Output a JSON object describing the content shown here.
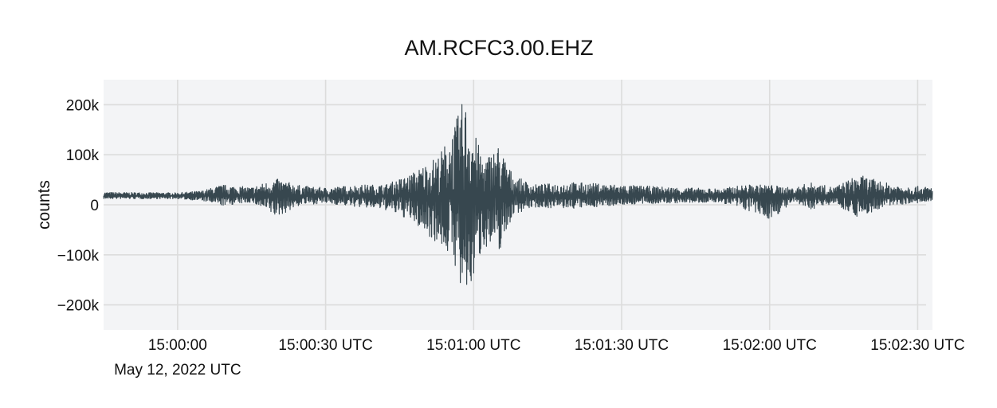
{
  "chart_data": {
    "type": "line",
    "title": "AM.RCFC3.00.EHZ",
    "ylabel": "counts",
    "xlabel": "",
    "x_axis": {
      "kind": "time",
      "range": [
        "14:59:45",
        "15:02:33"
      ],
      "ticks": [
        {
          "t": "15:00:00",
          "label": "15:00:00",
          "sublabel": "May 12, 2022 UTC"
        },
        {
          "t": "15:00:30",
          "label": "15:00:30 UTC",
          "sublabel": ""
        },
        {
          "t": "15:01:00",
          "label": "15:01:00 UTC",
          "sublabel": ""
        },
        {
          "t": "15:01:30",
          "label": "15:01:30 UTC",
          "sublabel": ""
        },
        {
          "t": "15:02:00",
          "label": "15:02:00 UTC",
          "sublabel": ""
        },
        {
          "t": "15:02:30",
          "label": "15:02:30 UTC",
          "sublabel": ""
        }
      ]
    },
    "y_axis": {
      "range": [
        -250000,
        250000
      ],
      "ticks": [
        {
          "value": 200000,
          "label": "200k"
        },
        {
          "value": 100000,
          "label": "100k"
        },
        {
          "value": 0,
          "label": "0"
        },
        {
          "value": -100000,
          "label": "−100k"
        },
        {
          "value": -200000,
          "label": "−200k"
        }
      ]
    },
    "grid": true,
    "legend": "none",
    "colors": {
      "trace": "#37474f",
      "plot_background": "#f3f4f6",
      "grid": "#dcdcdc"
    },
    "series": [
      {
        "baseline": 18000,
        "envelope": [
          {
            "t": "14:59:45",
            "max": 25000,
            "min": 12000
          },
          {
            "t": "15:00:00",
            "max": 24000,
            "min": 12000
          },
          {
            "t": "15:00:05",
            "max": 28000,
            "min": 8000
          },
          {
            "t": "15:00:09",
            "max": 40000,
            "min": -2000
          },
          {
            "t": "15:00:15",
            "max": 35000,
            "min": 5000
          },
          {
            "t": "15:00:20",
            "max": 52000,
            "min": -25000
          },
          {
            "t": "15:00:25",
            "max": 38000,
            "min": 0
          },
          {
            "t": "15:00:30",
            "max": 34000,
            "min": 3000
          },
          {
            "t": "15:00:37",
            "max": 40000,
            "min": -5000
          },
          {
            "t": "15:00:42",
            "max": 40000,
            "min": -10000
          },
          {
            "t": "15:00:47",
            "max": 60000,
            "min": -30000
          },
          {
            "t": "15:00:50",
            "max": 80000,
            "min": -55000
          },
          {
            "t": "15:00:53",
            "max": 100000,
            "min": -80000
          },
          {
            "t": "15:00:56",
            "max": 155000,
            "min": -110000
          },
          {
            "t": "15:00:58",
            "max": 215000,
            "min": -215000
          },
          {
            "t": "15:01:00",
            "max": 150000,
            "min": -150000
          },
          {
            "t": "15:01:02",
            "max": 90000,
            "min": -80000
          },
          {
            "t": "15:01:05",
            "max": 120000,
            "min": -100000
          },
          {
            "t": "15:01:08",
            "max": 60000,
            "min": -20000
          },
          {
            "t": "15:01:12",
            "max": 40000,
            "min": -5000
          },
          {
            "t": "15:01:20",
            "max": 45000,
            "min": -8000
          },
          {
            "t": "15:01:30",
            "max": 40000,
            "min": 0
          },
          {
            "t": "15:01:40",
            "max": 35000,
            "min": 3000
          },
          {
            "t": "15:01:50",
            "max": 32000,
            "min": 5000
          },
          {
            "t": "15:01:55",
            "max": 40000,
            "min": -10000
          },
          {
            "t": "15:02:00",
            "max": 40000,
            "min": -30000
          },
          {
            "t": "15:02:05",
            "max": 33000,
            "min": 5000
          },
          {
            "t": "15:02:08",
            "max": 45000,
            "min": -10000
          },
          {
            "t": "15:02:13",
            "max": 35000,
            "min": 3000
          },
          {
            "t": "15:02:18",
            "max": 60000,
            "min": -25000
          },
          {
            "t": "15:02:25",
            "max": 40000,
            "min": 0
          },
          {
            "t": "15:02:33",
            "max": 35000,
            "min": 5000
          }
        ]
      }
    ]
  }
}
